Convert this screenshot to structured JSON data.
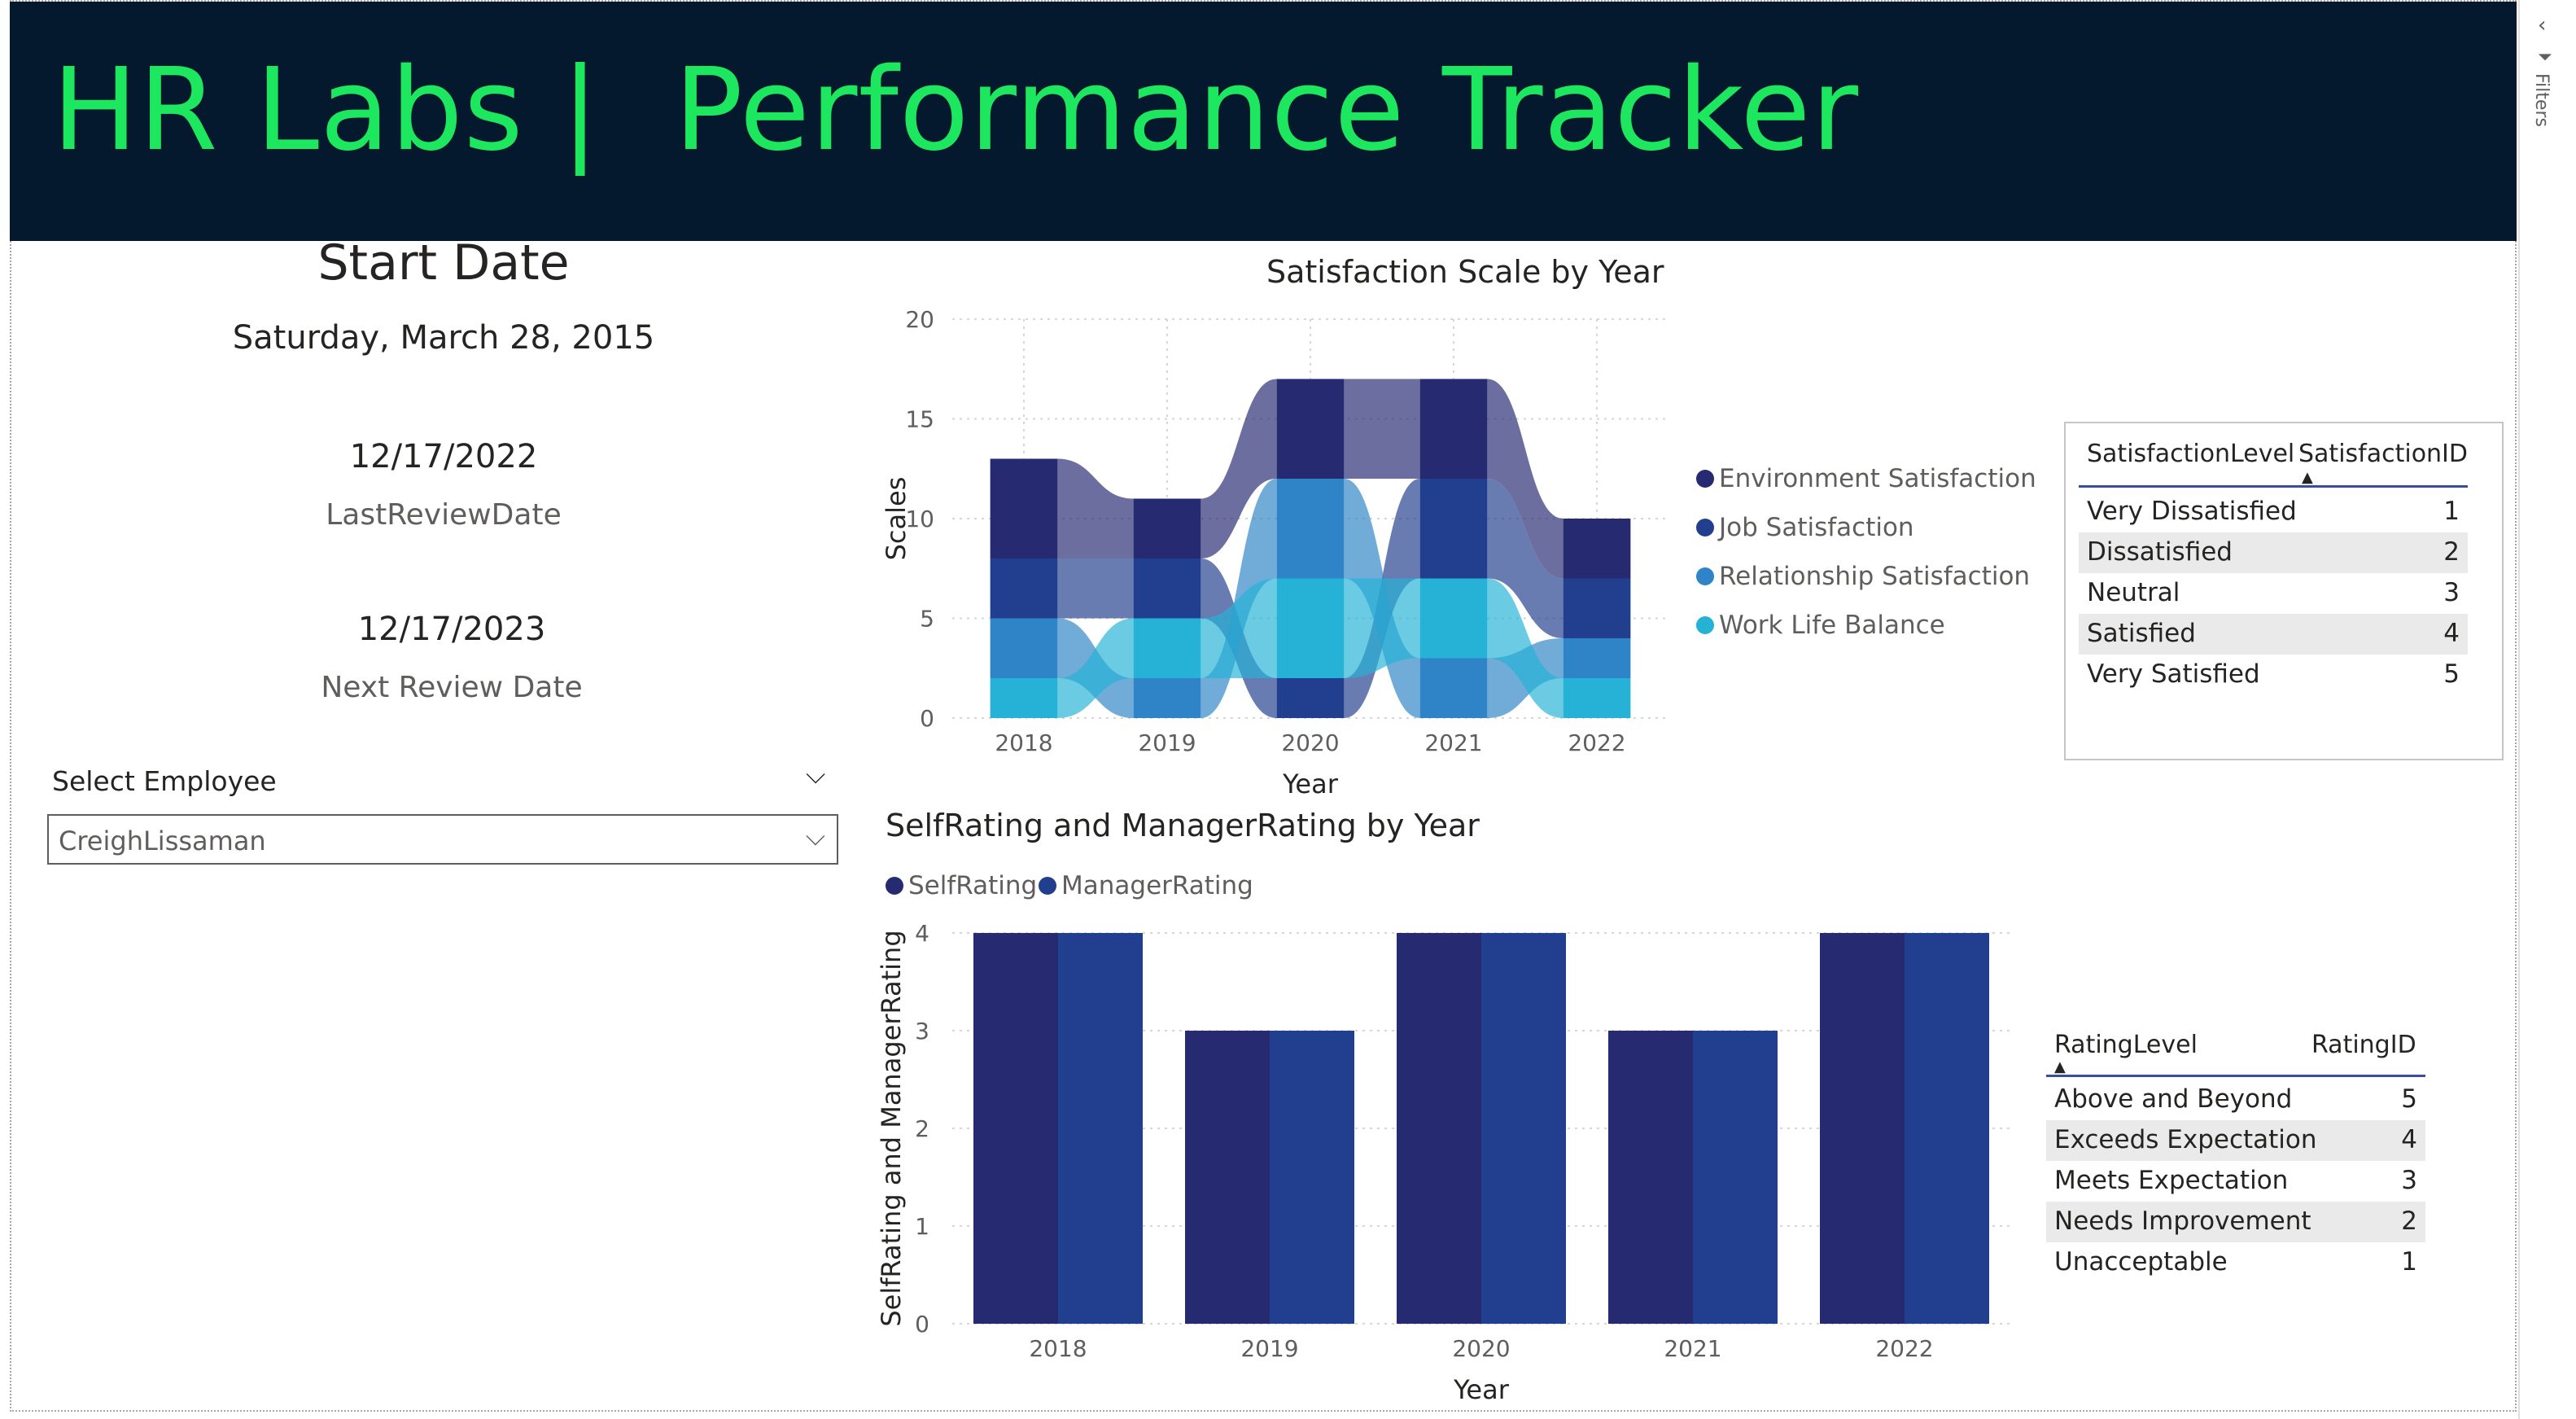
{
  "header": {
    "title": "HR Labs |  Performance Tracker"
  },
  "filters_pane": {
    "label": "Filters",
    "collapse_icon": "chevron-left-icon",
    "filter_icon": "funnel-icon"
  },
  "cards": {
    "start_date_title": "Start Date",
    "start_date_value": "Saturday, March 28, 2015",
    "last_review_value": "12/17/2022",
    "last_review_label": "LastReviewDate",
    "next_review_value": "12/17/2023",
    "next_review_label": "Next Review Date"
  },
  "slicer": {
    "label": "Select Employee",
    "selected": "CreighLissaman"
  },
  "colors": {
    "environment": "#262a71",
    "job": "#223e8e",
    "relationship": "#2e84c7",
    "worklife": "#25b2d6",
    "self": "#262a71",
    "manager": "#223e8e"
  },
  "satisfaction_chart": {
    "title": "Satisfaction Scale by Year",
    "xlabel": "Year",
    "ylabel": "Scales",
    "ylim": [
      0,
      20
    ],
    "yticks": [
      "0",
      "5",
      "10",
      "15",
      "20"
    ],
    "categories": [
      "2018",
      "2019",
      "2020",
      "2021",
      "2022"
    ],
    "legend": [
      "Environment Satisfaction",
      "Job Satisfaction",
      "Relationship Satisfaction",
      "Work Life Balance"
    ]
  },
  "rating_chart": {
    "title": "SelfRating and ManagerRating by Year",
    "xlabel": "Year",
    "ylabel": "SelfRating and ManagerRating",
    "ylim": [
      0,
      4
    ],
    "yticks": [
      "0",
      "1",
      "2",
      "3",
      "4"
    ],
    "categories": [
      "2018",
      "2019",
      "2020",
      "2021",
      "2022"
    ],
    "legend": [
      "SelfRating",
      "ManagerRating"
    ]
  },
  "chart_data": [
    {
      "type": "area",
      "title": "Satisfaction Scale by Year",
      "xlabel": "Year",
      "ylabel": "Scales",
      "ylim": [
        0,
        20
      ],
      "categories": [
        "2018",
        "2019",
        "2020",
        "2021",
        "2022"
      ],
      "series": [
        {
          "name": "Environment Satisfaction",
          "values": [
            5,
            3,
            5,
            5,
            3
          ]
        },
        {
          "name": "Job Satisfaction",
          "values": [
            3,
            3,
            2,
            5,
            3
          ]
        },
        {
          "name": "Relationship Satisfaction",
          "values": [
            3,
            2,
            5,
            3,
            2
          ]
        },
        {
          "name": "Work Life Balance",
          "values": [
            2,
            3,
            5,
            4,
            2
          ]
        }
      ],
      "legend_position": "right"
    },
    {
      "type": "bar",
      "title": "SelfRating and ManagerRating by Year",
      "xlabel": "Year",
      "ylabel": "SelfRating and ManagerRating",
      "ylim": [
        0,
        4
      ],
      "categories": [
        "2018",
        "2019",
        "2020",
        "2021",
        "2022"
      ],
      "series": [
        {
          "name": "SelfRating",
          "values": [
            4,
            3,
            4,
            3,
            4
          ]
        },
        {
          "name": "ManagerRating",
          "values": [
            4,
            3,
            4,
            3,
            4
          ]
        }
      ],
      "legend_position": "top-left"
    }
  ],
  "satisfaction_table": {
    "headers": [
      "SatisfactionLevel",
      "SatisfactionID"
    ],
    "rows": [
      [
        "Very Dissatisfied",
        "1"
      ],
      [
        "Dissatisfied",
        "2"
      ],
      [
        "Neutral",
        "3"
      ],
      [
        "Satisfied",
        "4"
      ],
      [
        "Very Satisfied",
        "5"
      ]
    ]
  },
  "rating_table": {
    "headers": [
      "RatingLevel",
      "RatingID"
    ],
    "rows": [
      [
        "Above and Beyond",
        "5"
      ],
      [
        "Exceeds Expectation",
        "4"
      ],
      [
        "Meets Expectation",
        "3"
      ],
      [
        "Needs Improvement",
        "2"
      ],
      [
        "Unacceptable",
        "1"
      ]
    ]
  }
}
